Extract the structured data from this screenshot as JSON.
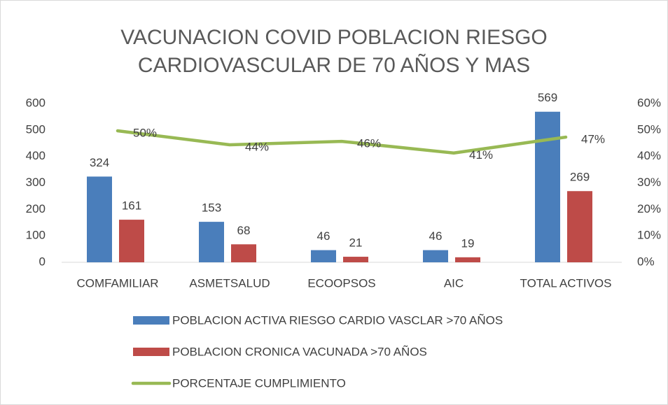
{
  "chart_data": {
    "type": "bar_line",
    "title": "VACUNACION COVID POBLACION RIESGO CARDIOVASCULAR DE 70 AÑOS Y MAS",
    "categories": [
      "COMFAMILIAR",
      "ASMETSALUD",
      "ECOOPSOS",
      "AIC",
      "TOTAL ACTIVOS"
    ],
    "series": [
      {
        "name": "POBLACION ACTIVA RIESGO CARDIO VASCLAR >70 AÑOS",
        "color": "#4a7ebb",
        "values": [
          324,
          153,
          46,
          46,
          569
        ]
      },
      {
        "name": "POBLACION CRONICA VACUNADA >70 AÑOS",
        "color": "#be4b48",
        "values": [
          161,
          68,
          21,
          19,
          269
        ]
      },
      {
        "name": "PORCENTAJE CUMPLIMIENTO",
        "color": "#98b954",
        "axis": "y2",
        "values": [
          49.7,
          44.4,
          45.7,
          41.3,
          47.3
        ],
        "value_labels": [
          "50%",
          "44%",
          "46%",
          "41%",
          "47%"
        ]
      }
    ],
    "ylim": [
      0,
      600
    ],
    "yticks": [
      0,
      100,
      200,
      300,
      400,
      500,
      600
    ],
    "y2lim": [
      0,
      60
    ],
    "y2ticks": [
      {
        "value": 0,
        "label": "0%"
      },
      {
        "value": 10,
        "label": "10%"
      },
      {
        "value": 20,
        "label": "20%"
      },
      {
        "value": 30,
        "label": "30%"
      },
      {
        "value": 40,
        "label": "40%"
      },
      {
        "value": 50,
        "label": "50%"
      },
      {
        "value": 60,
        "label": "60%"
      }
    ],
    "legend": "bottom"
  }
}
